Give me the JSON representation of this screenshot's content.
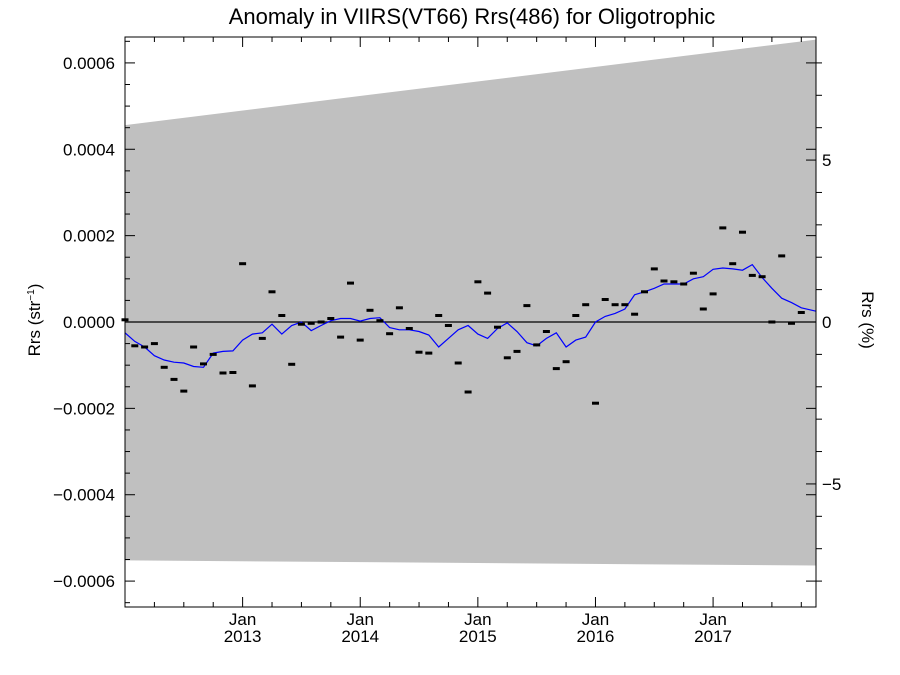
{
  "chart_data": {
    "type": "scatter",
    "title": "Anomaly in VIIRS(VT66) Rrs(486) for Oligotrophic",
    "ylabel_left": "Rrs (str",
    "ylabel_left_sup": "−1",
    "ylabel_left_close": ")",
    "ylabel_right": "Rrs (%)",
    "xlim": [
      2012.0,
      2017.875
    ],
    "ylim_left": [
      -0.00066,
      0.00066
    ],
    "ylim_right": [
      -8.8,
      8.8
    ],
    "left_ticks": [
      {
        "value": 0.0006,
        "label": "0.0006"
      },
      {
        "value": 0.0004,
        "label": "0.0004"
      },
      {
        "value": 0.0002,
        "label": "0.0002"
      },
      {
        "value": 0.0,
        "label": "0.0000"
      },
      {
        "value": -0.0002,
        "label": "−0.0002"
      },
      {
        "value": -0.0004,
        "label": "−0.0004"
      },
      {
        "value": -0.0006,
        "label": "−0.0006"
      }
    ],
    "right_ticks": [
      {
        "value": 5,
        "label": "5"
      },
      {
        "value": 0,
        "label": "0"
      },
      {
        "value": -5,
        "label": "−5"
      }
    ],
    "x_ticks": [
      {
        "value": 2013.0,
        "month": "Jan",
        "year": "2013"
      },
      {
        "value": 2014.0,
        "month": "Jan",
        "year": "2014"
      },
      {
        "value": 2015.0,
        "month": "Jan",
        "year": "2015"
      },
      {
        "value": 2016.0,
        "month": "Jan",
        "year": "2016"
      },
      {
        "value": 2017.0,
        "month": "Jan",
        "year": "2017"
      }
    ],
    "uncertainty_band": {
      "upper": [
        [
          2012.0,
          0.000456
        ],
        [
          2017.875,
          0.000654
        ]
      ],
      "lower": [
        [
          2012.0,
          -0.000552
        ],
        [
          2017.875,
          -0.000564
        ]
      ],
      "color": "#c0c0c0"
    },
    "zero_line": 0.0,
    "points": [
      [
        2012.0,
        5e-06
      ],
      [
        2012.083,
        -5.5e-05
      ],
      [
        2012.167,
        -5.8e-05
      ],
      [
        2012.25,
        -5e-05
      ],
      [
        2012.333,
        -0.000105
      ],
      [
        2012.417,
        -0.000133
      ],
      [
        2012.5,
        -0.00016
      ],
      [
        2012.583,
        -5.8e-05
      ],
      [
        2012.667,
        -9.7e-05
      ],
      [
        2012.75,
        -7.5e-05
      ],
      [
        2012.833,
        -0.000118
      ],
      [
        2012.917,
        -0.000117
      ],
      [
        2013.0,
        0.000135
      ],
      [
        2013.083,
        -0.000148
      ],
      [
        2013.167,
        -3.8e-05
      ],
      [
        2013.25,
        7e-05
      ],
      [
        2013.333,
        1.5e-05
      ],
      [
        2013.417,
        -9.8e-05
      ],
      [
        2013.5,
        -5e-06
      ],
      [
        2013.583,
        -3e-06
      ],
      [
        2013.667,
        0.0
      ],
      [
        2013.75,
        8e-06
      ],
      [
        2013.833,
        -3.5e-05
      ],
      [
        2013.917,
        9e-05
      ],
      [
        2014.0,
        -4.2e-05
      ],
      [
        2014.083,
        2.7e-05
      ],
      [
        2014.167,
        3e-06
      ],
      [
        2014.25,
        -2.7e-05
      ],
      [
        2014.333,
        3.3e-05
      ],
      [
        2014.417,
        -1.5e-05
      ],
      [
        2014.5,
        -7e-05
      ],
      [
        2014.583,
        -7.2e-05
      ],
      [
        2014.667,
        1.5e-05
      ],
      [
        2014.75,
        -8e-06
      ],
      [
        2014.833,
        -9.5e-05
      ],
      [
        2014.917,
        -0.000162
      ],
      [
        2015.0,
        9.3e-05
      ],
      [
        2015.083,
        6.7e-05
      ],
      [
        2015.167,
        -1.2e-05
      ],
      [
        2015.25,
        -8.3e-05
      ],
      [
        2015.333,
        -6.8e-05
      ],
      [
        2015.417,
        3.8e-05
      ],
      [
        2015.5,
        -5.3e-05
      ],
      [
        2015.583,
        -2.2e-05
      ],
      [
        2015.667,
        -0.000108
      ],
      [
        2015.75,
        -9.2e-05
      ],
      [
        2015.833,
        1.5e-05
      ],
      [
        2015.917,
        4e-05
      ],
      [
        2016.0,
        -0.000188
      ],
      [
        2016.083,
        5.2e-05
      ],
      [
        2016.167,
        4e-05
      ],
      [
        2016.25,
        4e-05
      ],
      [
        2016.333,
        1.8e-05
      ],
      [
        2016.417,
        7e-05
      ],
      [
        2016.5,
        0.000123
      ],
      [
        2016.583,
        9.5e-05
      ],
      [
        2016.667,
        9.3e-05
      ],
      [
        2016.75,
        8.8e-05
      ],
      [
        2016.833,
        0.000113
      ],
      [
        2016.917,
        3e-05
      ],
      [
        2017.0,
        6.5e-05
      ],
      [
        2017.083,
        0.000218
      ],
      [
        2017.167,
        0.000135
      ],
      [
        2017.25,
        0.000208
      ],
      [
        2017.333,
        0.000108
      ],
      [
        2017.417,
        0.000105
      ],
      [
        2017.5,
        0.0
      ],
      [
        2017.583,
        0.000153
      ],
      [
        2017.667,
        -3e-06
      ],
      [
        2017.75,
        2.2e-05
      ]
    ],
    "point_color": "#000000",
    "trend_color": "#0000ff",
    "trend": [
      [
        2012.0,
        -2.5e-05
      ],
      [
        2012.083,
        -4.5e-05
      ],
      [
        2012.167,
        -5.8e-05
      ],
      [
        2012.25,
        -7.8e-05
      ],
      [
        2012.333,
        -8.8e-05
      ],
      [
        2012.417,
        -9.3e-05
      ],
      [
        2012.5,
        -9.5e-05
      ],
      [
        2012.583,
        -0.000103
      ],
      [
        2012.667,
        -0.000105
      ],
      [
        2012.75,
        -7.2e-05
      ],
      [
        2012.833,
        -6.8e-05
      ],
      [
        2012.917,
        -6.7e-05
      ],
      [
        2013.0,
        -4.2e-05
      ],
      [
        2013.083,
        -2.8e-05
      ],
      [
        2013.167,
        -2.5e-05
      ],
      [
        2013.25,
        -5e-06
      ],
      [
        2013.333,
        -2.8e-05
      ],
      [
        2013.417,
        -8e-06
      ],
      [
        2013.5,
        0.0
      ],
      [
        2013.583,
        -2e-05
      ],
      [
        2013.667,
        -8e-06
      ],
      [
        2013.75,
        3e-06
      ],
      [
        2013.833,
        8e-06
      ],
      [
        2013.917,
        8e-06
      ],
      [
        2014.0,
        2e-06
      ],
      [
        2014.083,
        8e-06
      ],
      [
        2014.167,
        1e-05
      ],
      [
        2014.25,
        -1.3e-05
      ],
      [
        2014.333,
        -1.8e-05
      ],
      [
        2014.417,
        -1.8e-05
      ],
      [
        2014.5,
        -2.2e-05
      ],
      [
        2014.583,
        -3e-05
      ],
      [
        2014.667,
        -5.8e-05
      ],
      [
        2014.75,
        -3.8e-05
      ],
      [
        2014.833,
        -1.8e-05
      ],
      [
        2014.917,
        -8e-06
      ],
      [
        2015.0,
        -2.8e-05
      ],
      [
        2015.083,
        -3.8e-05
      ],
      [
        2015.167,
        -1.5e-05
      ],
      [
        2015.25,
        -2e-06
      ],
      [
        2015.333,
        -2.2e-05
      ],
      [
        2015.417,
        -4.8e-05
      ],
      [
        2015.5,
        -5.5e-05
      ],
      [
        2015.583,
        -3.8e-05
      ],
      [
        2015.667,
        -2.5e-05
      ],
      [
        2015.75,
        -5.8e-05
      ],
      [
        2015.833,
        -4.2e-05
      ],
      [
        2015.917,
        -3.5e-05
      ],
      [
        2016.0,
        0.0
      ],
      [
        2016.083,
        1.3e-05
      ],
      [
        2016.167,
        2e-05
      ],
      [
        2016.25,
        3e-05
      ],
      [
        2016.333,
        6.3e-05
      ],
      [
        2016.417,
        7e-05
      ],
      [
        2016.5,
        7.8e-05
      ],
      [
        2016.583,
        8.8e-05
      ],
      [
        2016.667,
        8.8e-05
      ],
      [
        2016.75,
        8.8e-05
      ],
      [
        2016.833,
        0.0001
      ],
      [
        2016.917,
        0.000105
      ],
      [
        2017.0,
        0.000122
      ],
      [
        2017.083,
        0.000125
      ],
      [
        2017.167,
        0.000123
      ],
      [
        2017.25,
        0.00012
      ],
      [
        2017.333,
        0.000133
      ],
      [
        2017.417,
        0.000103
      ],
      [
        2017.5,
        7.8e-05
      ],
      [
        2017.583,
        5.5e-05
      ],
      [
        2017.667,
        4.5e-05
      ],
      [
        2017.75,
        3.3e-05
      ],
      [
        2017.875,
        2.5e-05
      ]
    ]
  }
}
